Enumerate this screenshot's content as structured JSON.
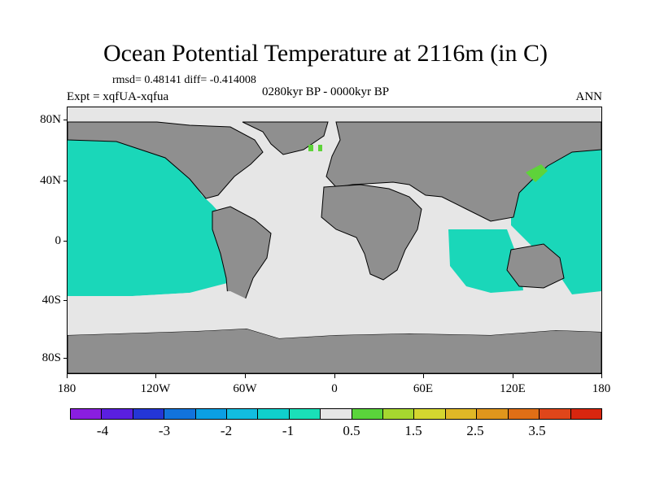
{
  "title": "Ocean Potential Temperature at 2116m (in C)",
  "stats": "rmsd= 0.48141 diff= -0.414008",
  "experiment": "Expt = xqfUA-xqfua",
  "period": "0280kyr BP - 0000kyr BP",
  "season": "ANN",
  "axes": {
    "lat_ticks": [
      "80N",
      "40N",
      "0",
      "40S",
      "80S"
    ],
    "lon_ticks": [
      "180",
      "120W",
      "60W",
      "0",
      "60E",
      "120E",
      "180"
    ]
  },
  "colorbar": {
    "colors": [
      "#8a1ee0",
      "#5a1fe0",
      "#2436d6",
      "#1273dc",
      "#0b9fe3",
      "#12bde0",
      "#10d0cc",
      "#1ae0b8",
      "#e6e6e6",
      "#5ad43b",
      "#a6d72f",
      "#d4d62f",
      "#e0b826",
      "#e0961c",
      "#e06f16",
      "#e0461a",
      "#d8260f"
    ],
    "labels": [
      "-4",
      "-3",
      "-2",
      "-1",
      "0.5",
      "1.5",
      "2.5",
      "3.5"
    ]
  },
  "colors": {
    "land": "#8f8f8f",
    "neutral": "#e6e6e6",
    "cool": "#1ad7b9",
    "warm": "#5ed33a"
  }
}
